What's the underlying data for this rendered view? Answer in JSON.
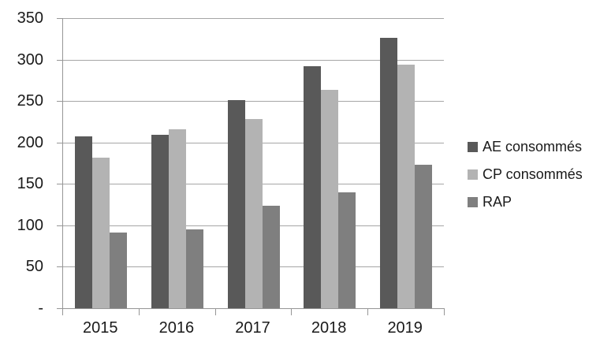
{
  "chart_data": {
    "type": "bar",
    "title": "",
    "xlabel": "",
    "ylabel": "",
    "categories": [
      "2015",
      "2016",
      "2017",
      "2018",
      "2019"
    ],
    "series": [
      {
        "key": "ae",
        "name": "AE consommés",
        "color": "#595959",
        "values": [
          207,
          209,
          251,
          292,
          326
        ]
      },
      {
        "key": "cp",
        "name": "CP consommés",
        "color": "#b3b3b3",
        "values": [
          182,
          216,
          228,
          263,
          294
        ]
      },
      {
        "key": "rap",
        "name": "RAP",
        "color": "#7f7f7f",
        "values": [
          91,
          95,
          124,
          140,
          173
        ]
      }
    ],
    "ylim": [
      0,
      350
    ],
    "ytick_step": 50,
    "ytick_labels": [
      "-",
      "50",
      "100",
      "150",
      "200",
      "250",
      "300",
      "350"
    ],
    "grid": true,
    "legend_position": "right"
  }
}
